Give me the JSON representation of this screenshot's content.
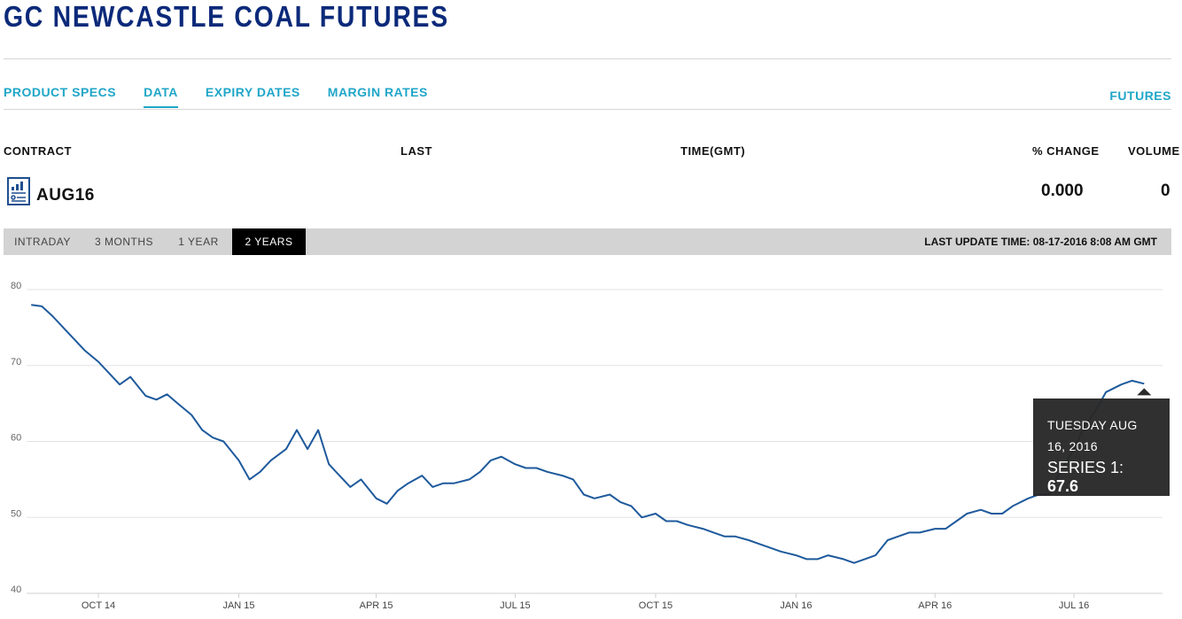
{
  "page": {
    "title": "GC NEWCASTLE COAL FUTURES"
  },
  "nav": {
    "tabs": [
      {
        "label": "PRODUCT SPECS",
        "active": false
      },
      {
        "label": "DATA",
        "active": true
      },
      {
        "label": "EXPIRY DATES",
        "active": false
      },
      {
        "label": "MARGIN RATES",
        "active": false
      }
    ],
    "right_link": "FUTURES"
  },
  "table": {
    "headers": {
      "contract": "CONTRACT",
      "last": "LAST",
      "time": "TIME(GMT)",
      "change": "% CHANGE",
      "volume": "VOLUME"
    },
    "row": {
      "contract": "AUG16",
      "change": "0.000",
      "volume": "0",
      "icon": "report-chart-icon"
    }
  },
  "range": {
    "buttons": [
      {
        "label": "INTRADAY",
        "active": false
      },
      {
        "label": "3 MONTHS",
        "active": false
      },
      {
        "label": "1 YEAR",
        "active": false
      },
      {
        "label": "2 YEARS",
        "active": true
      }
    ],
    "last_update": "LAST UPDATE TIME: 08-17-2016 8:08 AM GMT"
  },
  "colors": {
    "title": "#0c2a7a",
    "accent": "#1fa6c8",
    "line": "#1e5a9c",
    "grid": "#e3e3e3"
  },
  "tooltip": {
    "date": "TUESDAY AUG 16, 2016",
    "series_label": "SERIES 1: ",
    "value": "67.6"
  },
  "chart_data": {
    "type": "line",
    "title": "",
    "xlabel": "",
    "ylabel": "",
    "ylim": [
      40,
      80
    ],
    "yticks": [
      40,
      50,
      60,
      70,
      80
    ],
    "ytick_labels": [
      "40",
      "50",
      "60",
      "70",
      "80"
    ],
    "xticks": [
      "2014-10-01",
      "2015-01-01",
      "2015-04-01",
      "2015-07-01",
      "2015-10-01",
      "2016-01-01",
      "2016-04-01",
      "2016-07-01"
    ],
    "xtick_labels": [
      "OCT 14",
      "JAN 15",
      "APR 15",
      "JUL 15",
      "OCT 15",
      "JAN 16",
      "APR 16",
      "JUL 16"
    ],
    "xlim": [
      "2014-08-15",
      "2016-08-28"
    ],
    "grid": true,
    "series": [
      {
        "name": "Series 1",
        "x": [
          "2014-08-18",
          "2014-08-25",
          "2014-09-01",
          "2014-09-08",
          "2014-09-15",
          "2014-09-22",
          "2014-10-01",
          "2014-10-08",
          "2014-10-15",
          "2014-10-22",
          "2014-11-01",
          "2014-11-08",
          "2014-11-15",
          "2014-11-22",
          "2014-12-01",
          "2014-12-08",
          "2014-12-15",
          "2014-12-22",
          "2015-01-01",
          "2015-01-08",
          "2015-01-15",
          "2015-01-22",
          "2015-02-01",
          "2015-02-08",
          "2015-02-15",
          "2015-02-22",
          "2015-03-01",
          "2015-03-08",
          "2015-03-15",
          "2015-03-22",
          "2015-04-01",
          "2015-04-08",
          "2015-04-15",
          "2015-04-22",
          "2015-05-01",
          "2015-05-08",
          "2015-05-15",
          "2015-05-22",
          "2015-06-01",
          "2015-06-08",
          "2015-06-15",
          "2015-06-22",
          "2015-07-01",
          "2015-07-08",
          "2015-07-15",
          "2015-07-22",
          "2015-08-01",
          "2015-08-08",
          "2015-08-15",
          "2015-08-22",
          "2015-09-01",
          "2015-09-08",
          "2015-09-15",
          "2015-09-22",
          "2015-10-01",
          "2015-10-08",
          "2015-10-15",
          "2015-10-22",
          "2015-11-01",
          "2015-11-08",
          "2015-11-15",
          "2015-11-22",
          "2015-12-01",
          "2015-12-08",
          "2015-12-15",
          "2015-12-22",
          "2016-01-01",
          "2016-01-08",
          "2016-01-15",
          "2016-01-22",
          "2016-02-01",
          "2016-02-08",
          "2016-02-15",
          "2016-02-22",
          "2016-03-01",
          "2016-03-08",
          "2016-03-15",
          "2016-03-22",
          "2016-04-01",
          "2016-04-08",
          "2016-04-15",
          "2016-04-22",
          "2016-05-01",
          "2016-05-08",
          "2016-05-15",
          "2016-05-22",
          "2016-06-01",
          "2016-06-08",
          "2016-06-15",
          "2016-06-22",
          "2016-07-01",
          "2016-07-08",
          "2016-07-15",
          "2016-07-22",
          "2016-08-01",
          "2016-08-08",
          "2016-08-16"
        ],
        "y": [
          78.0,
          77.8,
          76.5,
          75.0,
          73.5,
          72.0,
          70.5,
          69.0,
          67.5,
          68.5,
          66.0,
          65.5,
          66.2,
          65.0,
          63.5,
          61.5,
          60.5,
          60.0,
          57.5,
          55.0,
          56.0,
          57.5,
          59.0,
          61.5,
          59.0,
          61.5,
          57.0,
          55.5,
          54.0,
          55.0,
          52.5,
          51.8,
          53.5,
          54.5,
          55.5,
          54.0,
          54.5,
          54.5,
          55.0,
          56.0,
          57.5,
          58.0,
          57.0,
          56.5,
          56.5,
          56.0,
          55.5,
          55.0,
          53.0,
          52.5,
          53.0,
          52.0,
          51.5,
          50.0,
          50.5,
          49.5,
          49.5,
          49.0,
          48.5,
          48.0,
          47.5,
          47.5,
          47.0,
          46.5,
          46.0,
          45.5,
          45.0,
          44.5,
          44.5,
          45.0,
          44.5,
          44.0,
          44.5,
          45.0,
          47.0,
          47.5,
          48.0,
          48.0,
          48.5,
          48.5,
          49.5,
          50.5,
          51.0,
          50.5,
          50.5,
          51.5,
          52.5,
          53.0,
          53.0,
          56.0,
          59.0,
          62.0,
          64.0,
          66.5,
          67.5,
          68.0,
          67.6
        ]
      }
    ]
  }
}
